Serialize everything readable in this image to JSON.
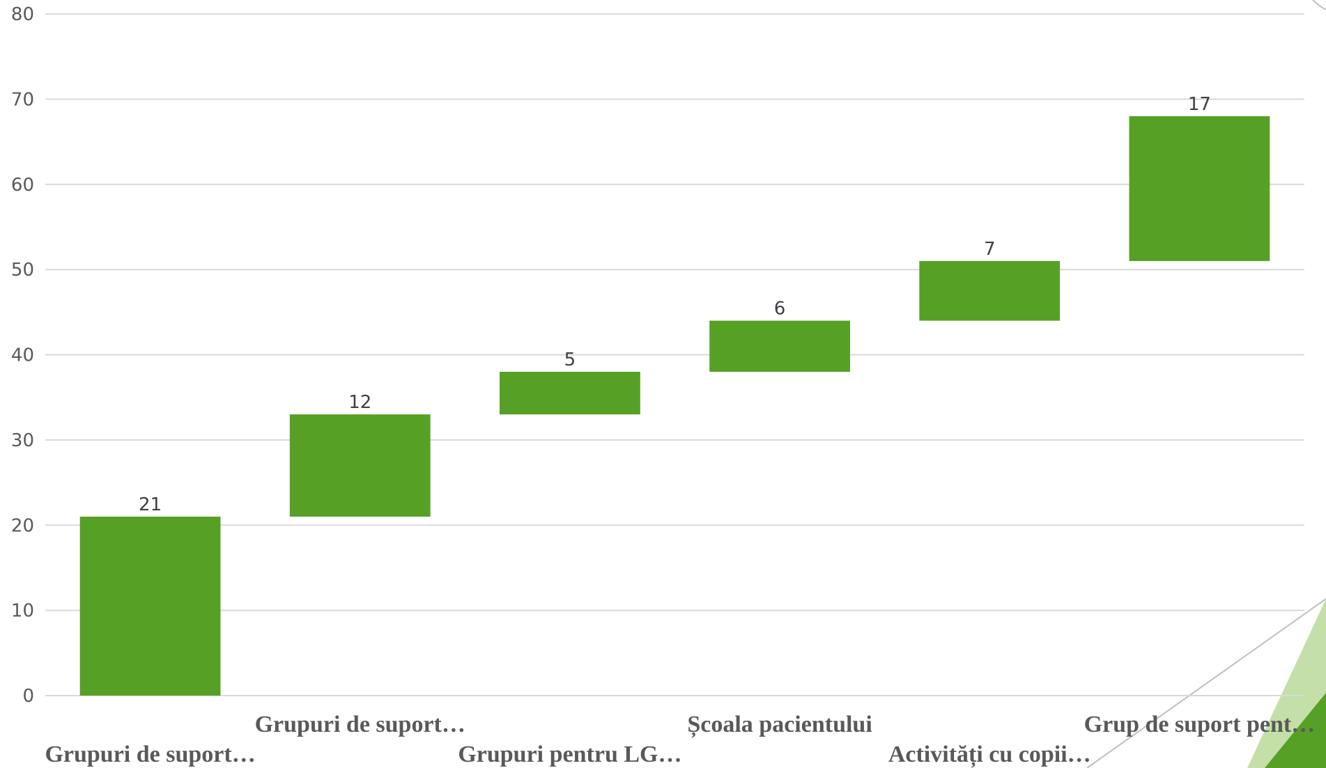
{
  "chart_data": {
    "type": "bar",
    "subtype": "waterfall",
    "categories": [
      "Grupuri de suport…",
      "Grupuri de suport…",
      "Grupuri pentru LG…",
      "Școala pacientului",
      "Activități cu copii…",
      "Grup de suport pent…"
    ],
    "values": [
      21,
      12,
      5,
      6,
      7,
      17
    ],
    "ylim": [
      0,
      80
    ],
    "yticks": [
      0,
      10,
      20,
      30,
      40,
      50,
      60,
      70,
      80
    ],
    "grid": true,
    "legend": "none",
    "bar_color": "#56A026",
    "decoration_colors": {
      "light": "#C5DFA8",
      "dark": "#56A026",
      "line": "#bfbfbf"
    }
  }
}
